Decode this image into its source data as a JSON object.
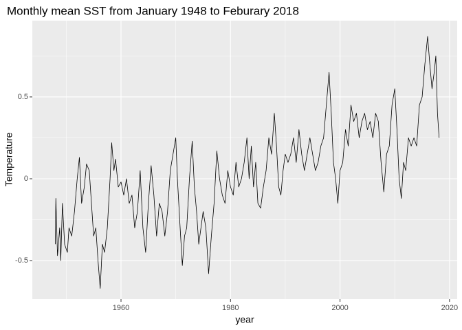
{
  "chart_data": {
    "type": "line",
    "title": "Monthly mean SST from January 1948 to Feburary 2018",
    "x_label": "year",
    "y_label": "Temperature",
    "xlim": [
      1943.8,
      2021.4
    ],
    "ylim": [
      -0.735,
      0.966
    ],
    "xticks": [
      1960,
      1980,
      2000,
      2020
    ],
    "yticks": [
      -0.5,
      0.0,
      0.5
    ],
    "x_minor_ticks": [
      1950,
      1970,
      1990,
      2010
    ],
    "y_minor_ticks": [
      -0.25,
      0.25,
      0.75
    ],
    "grid": true,
    "panel_color": "#ebebeb",
    "x": [
      1948.0,
      1948.1,
      1948.4,
      1948.8,
      1949.0,
      1949.3,
      1949.7,
      1950.2,
      1950.5,
      1951.0,
      1951.5,
      1952.0,
      1952.4,
      1952.8,
      1953.3,
      1953.7,
      1954.2,
      1954.6,
      1955.0,
      1955.4,
      1955.8,
      1956.2,
      1956.6,
      1957.0,
      1957.5,
      1958.0,
      1958.3,
      1958.7,
      1959.0,
      1959.5,
      1960.0,
      1960.5,
      1961.0,
      1961.5,
      1962.0,
      1962.5,
      1963.0,
      1963.5,
      1964.0,
      1964.5,
      1965.0,
      1965.5,
      1966.0,
      1966.5,
      1967.0,
      1967.5,
      1968.0,
      1968.5,
      1969.0,
      1969.5,
      1970.0,
      1970.3,
      1970.8,
      1971.2,
      1971.6,
      1972.0,
      1972.5,
      1973.0,
      1973.4,
      1973.8,
      1974.2,
      1974.6,
      1975.0,
      1975.5,
      1976.0,
      1976.5,
      1977.0,
      1977.5,
      1978.0,
      1978.5,
      1979.0,
      1979.5,
      1980.0,
      1980.5,
      1981.0,
      1981.5,
      1982.0,
      1982.5,
      1983.0,
      1983.4,
      1983.8,
      1984.2,
      1984.6,
      1985.0,
      1985.5,
      1986.0,
      1986.5,
      1987.0,
      1987.5,
      1988.0,
      1988.4,
      1988.8,
      1989.2,
      1989.6,
      1990.0,
      1990.5,
      1991.0,
      1991.5,
      1992.0,
      1992.5,
      1993.0,
      1993.5,
      1994.0,
      1994.5,
      1995.0,
      1995.5,
      1996.0,
      1996.5,
      1997.0,
      1997.5,
      1998.0,
      1998.4,
      1998.8,
      1999.2,
      1999.6,
      2000.0,
      2000.5,
      2001.0,
      2001.5,
      2002.0,
      2002.5,
      2003.0,
      2003.5,
      2004.0,
      2004.5,
      2005.0,
      2005.5,
      2006.0,
      2006.5,
      2007.0,
      2007.5,
      2008.0,
      2008.5,
      2009.0,
      2009.5,
      2010.0,
      2010.4,
      2010.8,
      2011.2,
      2011.6,
      2012.0,
      2012.5,
      2013.0,
      2013.5,
      2014.0,
      2014.5,
      2015.0,
      2015.5,
      2016.0,
      2016.4,
      2016.8,
      2017.2,
      2017.5,
      2017.8,
      2018.1
    ],
    "series": [
      {
        "color": "#000000",
        "values": [
          -0.4,
          -0.12,
          -0.47,
          -0.3,
          -0.5,
          -0.15,
          -0.4,
          -0.45,
          -0.3,
          -0.35,
          -0.2,
          0.0,
          0.13,
          -0.15,
          -0.05,
          0.09,
          0.05,
          -0.15,
          -0.35,
          -0.3,
          -0.5,
          -0.67,
          -0.4,
          -0.45,
          -0.3,
          0.0,
          0.22,
          0.05,
          0.12,
          -0.05,
          -0.02,
          -0.1,
          0.0,
          -0.15,
          -0.1,
          -0.3,
          -0.2,
          0.05,
          -0.3,
          -0.45,
          -0.15,
          0.08,
          -0.1,
          -0.35,
          -0.15,
          -0.2,
          -0.35,
          -0.2,
          0.05,
          0.15,
          0.25,
          0.0,
          -0.3,
          -0.53,
          -0.35,
          -0.3,
          0.0,
          0.23,
          -0.05,
          -0.2,
          -0.4,
          -0.3,
          -0.2,
          -0.3,
          -0.58,
          -0.35,
          -0.15,
          0.17,
          0.0,
          -0.1,
          -0.15,
          0.05,
          -0.05,
          -0.1,
          0.1,
          -0.05,
          0.0,
          0.1,
          0.25,
          0.0,
          0.2,
          -0.05,
          0.1,
          -0.15,
          -0.18,
          -0.05,
          0.05,
          0.25,
          0.15,
          0.4,
          0.2,
          -0.05,
          -0.1,
          0.05,
          0.15,
          0.1,
          0.15,
          0.25,
          0.1,
          0.3,
          0.15,
          0.05,
          0.15,
          0.25,
          0.15,
          0.05,
          0.1,
          0.2,
          0.25,
          0.45,
          0.65,
          0.4,
          0.1,
          0.0,
          -0.15,
          0.05,
          0.1,
          0.3,
          0.2,
          0.45,
          0.35,
          0.4,
          0.25,
          0.35,
          0.4,
          0.3,
          0.35,
          0.25,
          0.4,
          0.35,
          0.1,
          -0.08,
          0.15,
          0.2,
          0.45,
          0.55,
          0.3,
          0.0,
          -0.12,
          0.1,
          0.05,
          0.25,
          0.2,
          0.25,
          0.2,
          0.45,
          0.5,
          0.7,
          0.87,
          0.7,
          0.55,
          0.65,
          0.75,
          0.4,
          0.25
        ]
      }
    ]
  }
}
